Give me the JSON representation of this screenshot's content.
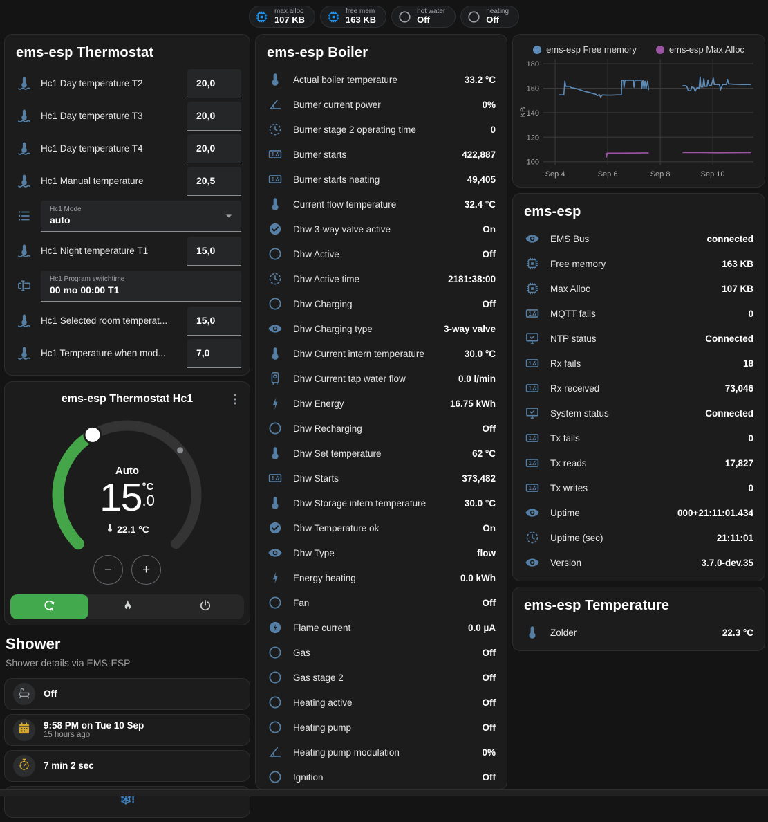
{
  "colors": {
    "icon_blue": "#557fa5",
    "badge_chip_blue": "#2196f3",
    "badge_gray": "#9aa0a6",
    "amber": "#d2a62c",
    "snowflake_blue": "#3d85c8",
    "accent_green": "#42a94c",
    "arc_green": "#44a648",
    "dial_track": "#343434",
    "free_memory_line": "#5d8cb8",
    "max_alloc_line": "#9c55a3"
  },
  "top_badges": [
    {
      "label": "max alloc",
      "value": "107 KB",
      "icon": "memory-chip-icon",
      "icon_color": "#2196f3"
    },
    {
      "label": "free mem",
      "value": "163 KB",
      "icon": "memory-chip-icon",
      "icon_color": "#2196f3"
    },
    {
      "label": "hot water",
      "value": "Off",
      "icon": "circle-outline-icon",
      "icon_color": "#9aa0a6"
    },
    {
      "label": "heating",
      "value": "Off",
      "icon": "circle-outline-icon",
      "icon_color": "#9aa0a6"
    }
  ],
  "thermostat_card": {
    "title": "ems-esp Thermostat",
    "rows": [
      {
        "type": "number",
        "icon": "thermometer-water-icon",
        "label": "Hc1 Day temperature T2",
        "value": "20,0"
      },
      {
        "type": "number",
        "icon": "thermometer-water-icon",
        "label": "Hc1 Day temperature T3",
        "value": "20,0"
      },
      {
        "type": "number",
        "icon": "thermometer-water-icon",
        "label": "Hc1 Day temperature T4",
        "value": "20,0"
      },
      {
        "type": "number",
        "icon": "thermometer-water-icon",
        "label": "Hc1 Manual temperature",
        "value": "20,5"
      },
      {
        "type": "select",
        "icon": "list-icon",
        "label": "Hc1 Mode",
        "value": "auto"
      },
      {
        "type": "number",
        "icon": "thermometer-water-icon",
        "label": "Hc1 Night temperature T1",
        "value": "15,0"
      },
      {
        "type": "text",
        "icon": "textbox-icon",
        "label": "Hc1 Program switchtime",
        "value": "00 mo 00:00 T1"
      },
      {
        "type": "number",
        "icon": "thermometer-water-icon",
        "label": "Hc1 Selected room temperat...",
        "value": "15,0"
      },
      {
        "type": "number",
        "icon": "thermometer-water-icon",
        "label": "Hc1 Temperature when mod...",
        "value": "7,0"
      }
    ]
  },
  "dial_card": {
    "title": "ems-esp Thermostat Hc1",
    "hvac_label": "Auto",
    "target_whole": "15",
    "target_unit": "°C",
    "target_fraction": ".0",
    "current_temperature": "22.1 °C",
    "decrease_label": "−",
    "increase_label": "+",
    "modes": [
      {
        "name": "auto",
        "icon": "thermostat-auto-icon",
        "selected": true
      },
      {
        "name": "heat",
        "icon": "flame-icon",
        "selected": false
      },
      {
        "name": "off",
        "icon": "power-icon",
        "selected": false
      }
    ]
  },
  "shower": {
    "title": "Shower",
    "subtitle": "Shower details via EMS-ESP",
    "items": [
      {
        "icon": "bathtub-icon",
        "icon_color": "#9aa0a6",
        "primary": "Off",
        "secondary": ""
      },
      {
        "icon": "calendar-icon",
        "icon_color": "#d2a62c",
        "primary": "9:58 PM on Tue 10 Sep",
        "secondary": "15 hours ago"
      },
      {
        "icon": "timer-icon",
        "icon_color": "#d2a62c",
        "primary": "7 min 2 sec",
        "secondary": ""
      },
      {
        "icon": "snowflake-alert-icon",
        "icon_color": "#3d85c8",
        "primary": "",
        "secondary": "",
        "centered": true
      }
    ]
  },
  "boiler_card": {
    "title": "ems-esp Boiler",
    "rows": [
      {
        "icon": "thermometer-icon",
        "label": "Actual boiler temperature",
        "value": "33.2 °C"
      },
      {
        "icon": "angle-icon",
        "label": "Burner current power",
        "value": "0%"
      },
      {
        "icon": "clock-icon",
        "label": "Burner stage 2 operating time",
        "value": "0"
      },
      {
        "icon": "counter-icon",
        "label": "Burner starts",
        "value": "422,887"
      },
      {
        "icon": "counter-icon",
        "label": "Burner starts heating",
        "value": "49,405"
      },
      {
        "icon": "thermometer-icon",
        "label": "Current flow temperature",
        "value": "32.4 °C"
      },
      {
        "icon": "check-circle-icon",
        "label": "Dhw 3-way valve active",
        "value": "On"
      },
      {
        "icon": "circle-outline-icon",
        "label": "Dhw Active",
        "value": "Off"
      },
      {
        "icon": "clock-icon",
        "label": "Dhw Active time",
        "value": "2181:38:00"
      },
      {
        "icon": "circle-outline-icon",
        "label": "Dhw Charging",
        "value": "Off"
      },
      {
        "icon": "eye-icon",
        "label": "Dhw Charging type",
        "value": "3-way valve"
      },
      {
        "icon": "thermometer-icon",
        "label": "Dhw Current intern temperature",
        "value": "30.0 °C"
      },
      {
        "icon": "water-boiler-icon",
        "label": "Dhw Current tap water flow",
        "value": "0.0 l/min"
      },
      {
        "icon": "lightning-icon",
        "label": "Dhw Energy",
        "value": "16.75 kWh"
      },
      {
        "icon": "circle-outline-icon",
        "label": "Dhw Recharging",
        "value": "Off"
      },
      {
        "icon": "thermometer-icon",
        "label": "Dhw Set temperature",
        "value": "62 °C"
      },
      {
        "icon": "counter-icon",
        "label": "Dhw Starts",
        "value": "373,482"
      },
      {
        "icon": "thermometer-icon",
        "label": "Dhw Storage intern temperature",
        "value": "30.0 °C"
      },
      {
        "icon": "check-circle-icon",
        "label": "Dhw Temperature ok",
        "value": "On"
      },
      {
        "icon": "eye-icon",
        "label": "Dhw Type",
        "value": "flow"
      },
      {
        "icon": "lightning-icon",
        "label": "Energy heating",
        "value": "0.0 kWh"
      },
      {
        "icon": "circle-outline-icon",
        "label": "Fan",
        "value": "Off"
      },
      {
        "icon": "flash-circle-icon",
        "label": "Flame current",
        "value": "0.0 µA"
      },
      {
        "icon": "circle-outline-icon",
        "label": "Gas",
        "value": "Off"
      },
      {
        "icon": "circle-outline-icon",
        "label": "Gas stage 2",
        "value": "Off"
      },
      {
        "icon": "circle-outline-icon",
        "label": "Heating active",
        "value": "Off"
      },
      {
        "icon": "circle-outline-icon",
        "label": "Heating pump",
        "value": "Off"
      },
      {
        "icon": "angle-icon",
        "label": "Heating pump modulation",
        "value": "0%"
      },
      {
        "icon": "circle-outline-icon",
        "label": "Ignition",
        "value": "Off"
      }
    ]
  },
  "emsesp_card": {
    "title": "ems-esp",
    "rows": [
      {
        "icon": "eye-icon",
        "label": "EMS Bus",
        "value": "connected"
      },
      {
        "icon": "memory-chip-icon",
        "label": "Free memory",
        "value": "163 KB"
      },
      {
        "icon": "memory-chip-icon",
        "label": "Max Alloc",
        "value": "107 KB"
      },
      {
        "icon": "counter-icon",
        "label": "MQTT fails",
        "value": "0"
      },
      {
        "icon": "monitor-check-icon",
        "label": "NTP status",
        "value": "Connected"
      },
      {
        "icon": "counter-icon",
        "label": "Rx fails",
        "value": "18"
      },
      {
        "icon": "counter-icon",
        "label": "Rx received",
        "value": "73,046"
      },
      {
        "icon": "monitor-check-icon",
        "label": "System status",
        "value": "Connected"
      },
      {
        "icon": "counter-icon",
        "label": "Tx fails",
        "value": "0"
      },
      {
        "icon": "counter-icon",
        "label": "Tx reads",
        "value": "17,827"
      },
      {
        "icon": "counter-icon",
        "label": "Tx writes",
        "value": "0"
      },
      {
        "icon": "eye-icon",
        "label": "Uptime",
        "value": "000+21:11:01.434"
      },
      {
        "icon": "clock-icon",
        "label": "Uptime (sec)",
        "value": "21:11:01"
      },
      {
        "icon": "eye-icon",
        "label": "Version",
        "value": "3.7.0-dev.35"
      }
    ]
  },
  "temperature_card": {
    "title": "ems-esp Temperature",
    "rows": [
      {
        "icon": "thermometer-icon",
        "label": "Zolder",
        "value": "22.3 °C"
      }
    ]
  },
  "chart_data": {
    "type": "line",
    "title": "",
    "xlabel": "",
    "ylabel": "KB",
    "grid": true,
    "legend_position": "top",
    "ylim": [
      97,
      184
    ],
    "yticks": [
      100,
      120,
      140,
      160,
      180
    ],
    "xlim": [
      3.55,
      11.55
    ],
    "xticks": [
      {
        "x": 4,
        "label": "Sep 4"
      },
      {
        "x": 6,
        "label": "Sep 6"
      },
      {
        "x": 8,
        "label": "Sep 8"
      },
      {
        "x": 10,
        "label": "Sep 10"
      }
    ],
    "series": [
      {
        "name": "ems-esp Free memory",
        "color": "#5d8cb8",
        "segments": [
          [
            [
              4.15,
              154.5
            ],
            [
              4.33,
              154.5
            ],
            [
              4.37,
              166
            ],
            [
              4.4,
              161.5
            ],
            [
              4.55,
              161.5
            ],
            [
              4.6,
              160.5
            ],
            [
              4.75,
              160
            ],
            [
              4.9,
              159
            ],
            [
              5.1,
              157.5
            ],
            [
              5.3,
              156.5
            ],
            [
              5.45,
              155.5
            ],
            [
              5.55,
              155
            ],
            [
              5.6,
              153.8
            ],
            [
              5.68,
              154.8
            ],
            [
              5.73,
              152.8
            ],
            [
              5.8,
              154.5
            ],
            [
              5.95,
              154.3
            ],
            [
              6.15,
              154.3
            ],
            [
              6.35,
              154.5
            ],
            [
              6.52,
              154.5
            ],
            [
              6.54,
              166.5
            ],
            [
              6.6,
              166.5
            ],
            [
              6.62,
              160.5
            ],
            [
              6.66,
              166.5
            ],
            [
              6.98,
              166.5
            ],
            [
              7.0,
              160.5
            ],
            [
              7.04,
              166.5
            ],
            [
              7.28,
              166.5
            ],
            [
              7.3,
              159.5
            ],
            [
              7.34,
              166.5
            ],
            [
              7.38,
              159.5
            ],
            [
              7.42,
              166
            ],
            [
              7.46,
              159.5
            ],
            [
              7.52,
              166
            ],
            [
              7.56,
              158.5
            ]
          ],
          [
            [
              8.85,
              162
            ],
            [
              8.98,
              162
            ],
            [
              9.02,
              161
            ],
            [
              9.06,
              158.5
            ],
            [
              9.1,
              158
            ],
            [
              9.16,
              158
            ],
            [
              9.2,
              161
            ],
            [
              9.28,
              160.5
            ],
            [
              9.33,
              157.5
            ],
            [
              9.4,
              160.5
            ],
            [
              9.48,
              160
            ],
            [
              9.52,
              169.5
            ],
            [
              9.55,
              161
            ],
            [
              9.62,
              161
            ],
            [
              9.66,
              168
            ],
            [
              9.7,
              161.5
            ],
            [
              9.78,
              161.5
            ],
            [
              9.82,
              167
            ],
            [
              9.86,
              162
            ],
            [
              9.95,
              162.5
            ],
            [
              10.02,
              168.5
            ],
            [
              10.06,
              163
            ],
            [
              10.25,
              163
            ],
            [
              10.3,
              159
            ],
            [
              10.38,
              163
            ],
            [
              10.52,
              163
            ],
            [
              10.56,
              167.5
            ],
            [
              10.6,
              163.5
            ],
            [
              10.8,
              163.2
            ],
            [
              11.1,
              163
            ],
            [
              11.45,
              163
            ]
          ]
        ]
      },
      {
        "name": "ems-esp Max Alloc",
        "color": "#9c55a3",
        "segments": [
          [
            [
              5.93,
              107
            ],
            [
              5.95,
              103.5
            ],
            [
              5.98,
              107
            ],
            [
              6.5,
              107
            ],
            [
              7.56,
              107.2
            ]
          ],
          [
            [
              8.85,
              107.5
            ],
            [
              9.5,
              107.5
            ],
            [
              10.2,
              107.3
            ],
            [
              11.45,
              107.5
            ]
          ]
        ]
      }
    ]
  }
}
